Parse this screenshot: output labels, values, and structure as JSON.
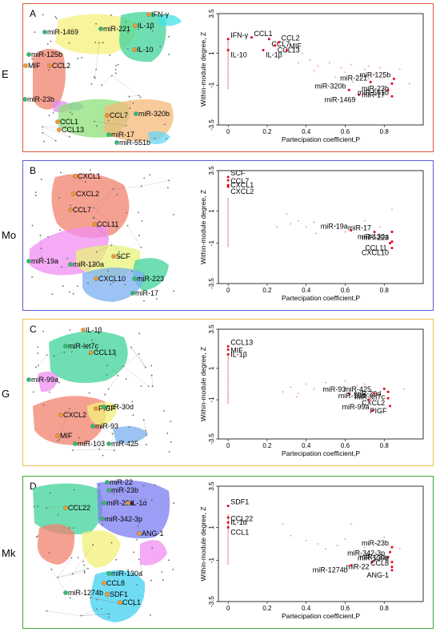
{
  "colors": {
    "panel_A_border": "#e05a3a",
    "panel_B_border": "#5b5bd6",
    "panel_C_border": "#f2c14e",
    "panel_D_border": "#3aa83a",
    "hub_point": "#e0001b",
    "faint_point": "#f3a0ad"
  },
  "panels": [
    {
      "letter": "A",
      "side_label": "E",
      "network_labels": [
        "IFN-γ",
        "miR-221",
        "IL-1β",
        "miR-1469",
        "IL-10",
        "miR-125b",
        "MIF",
        "CCL2",
        "miR-23b",
        "CCL7",
        "CCL1",
        "CCL13",
        "miR-320b",
        "miR-17",
        "miR-551b"
      ],
      "chart_data": {
        "type": "scatter",
        "xlabel": "Partecipation coefficient,P",
        "ylabel": "Within-module degree, Z",
        "xlim": [
          -0.05,
          1.0
        ],
        "ylim": [
          -3.5,
          3.5
        ],
        "xticks": [
          "0",
          "0.2",
          "0.4",
          "0.6",
          "0.8"
        ],
        "yticks": [
          "3.5",
          "1",
          "-1",
          "-3.5"
        ],
        "labeled_points": [
          {
            "label": "IFN-γ",
            "x": 0.0,
            "y": 1.9
          },
          {
            "label": "IL-10",
            "x": 0.0,
            "y": 1.2
          },
          {
            "label": "CCL1",
            "x": 0.12,
            "y": 2.0
          },
          {
            "label": "CCL7",
            "x": 0.21,
            "y": 1.9
          },
          {
            "label": "CCL2",
            "x": 0.26,
            "y": 1.7
          },
          {
            "label": "CCL13",
            "x": 0.24,
            "y": 1.5
          },
          {
            "label": "MIF",
            "x": 0.3,
            "y": 1.2
          },
          {
            "label": "IL-1β",
            "x": 0.18,
            "y": 1.2
          },
          {
            "label": "miR-125b",
            "x": 0.85,
            "y": -0.6
          },
          {
            "label": "miR-23b",
            "x": 0.84,
            "y": -0.9
          },
          {
            "label": "miR-221",
            "x": 0.73,
            "y": -0.8
          },
          {
            "label": "miR-17",
            "x": 0.82,
            "y": -1.3
          },
          {
            "label": "miR-320b",
            "x": 0.62,
            "y": -1.3
          },
          {
            "label": "miR-1469",
            "x": 0.67,
            "y": -1.6
          },
          {
            "label": "miR-551b",
            "x": 0.84,
            "y": -1.7
          }
        ],
        "background_points": [
          [
            0.38,
            1.0
          ],
          [
            0.42,
            0.6
          ],
          [
            0.46,
            0.2
          ],
          [
            0.52,
            0.4
          ],
          [
            0.58,
            0.1
          ],
          [
            0.6,
            -0.2
          ],
          [
            0.63,
            0.3
          ],
          [
            0.66,
            -0.4
          ],
          [
            0.7,
            0.0
          ],
          [
            0.72,
            0.2
          ],
          [
            0.75,
            -0.3
          ],
          [
            0.78,
            0.1
          ],
          [
            0.8,
            -0.5
          ],
          [
            0.88,
            0.0
          ],
          [
            0.93,
            -0.9
          ],
          [
            0.36,
            0.4
          ],
          [
            0.44,
            -0.1
          ],
          [
            0.55,
            -0.5
          ],
          [
            0.64,
            -0.8
          ],
          [
            0.72,
            -0.6
          ]
        ]
      }
    },
    {
      "letter": "B",
      "side_label": "Mo",
      "network_labels": [
        "CXCL1",
        "CXCL2",
        "CCL7",
        "CCL11",
        "miR-19a",
        "miR-130a",
        "SCF",
        "CXCL10",
        "miR-223",
        "miR-17"
      ],
      "chart_data": {
        "type": "scatter",
        "xlabel": "Partecipation coefficient,P",
        "ylabel": "Within-module degree, Z",
        "xlim": [
          -0.05,
          1.0
        ],
        "ylim": [
          -3.5,
          3.5
        ],
        "xticks": [
          "0",
          "0.2",
          "0.4",
          "0.6",
          "0.8"
        ],
        "yticks": [
          "3.5",
          "1",
          "-1",
          "-3.5"
        ],
        "labeled_points": [
          {
            "label": "SCF",
            "x": 0.0,
            "y": 3.1
          },
          {
            "label": "CXCL1",
            "x": 0.0,
            "y": 2.9
          },
          {
            "label": "CCL7",
            "x": 0.0,
            "y": 2.6
          },
          {
            "label": "CXCL2",
            "x": 0.0,
            "y": 2.5
          },
          {
            "label": "miR-17",
            "x": 0.75,
            "y": -0.3
          },
          {
            "label": "miR-130a",
            "x": 0.84,
            "y": -0.3
          },
          {
            "label": "miR-19a",
            "x": 0.63,
            "y": -0.2
          },
          {
            "label": "CCL11",
            "x": 0.83,
            "y": -1.0
          },
          {
            "label": "miR-223",
            "x": 0.84,
            "y": -0.9
          },
          {
            "label": "CXCL10",
            "x": 0.84,
            "y": -1.3
          }
        ],
        "background_points": [
          [
            0.3,
            0.8
          ],
          [
            0.32,
            0.2
          ],
          [
            0.36,
            0.4
          ],
          [
            0.4,
            0.0
          ],
          [
            0.44,
            0.3
          ],
          [
            0.5,
            -0.1
          ],
          [
            0.55,
            0.1
          ],
          [
            0.6,
            -0.3
          ],
          [
            0.7,
            0.4
          ],
          [
            0.78,
            0.0
          ],
          [
            0.84,
            1.1
          ],
          [
            0.25,
            0.0
          ],
          [
            0.45,
            -0.4
          ]
        ]
      }
    },
    {
      "letter": "C",
      "side_label": "G",
      "network_labels": [
        "IL-1β",
        "miR-let7c",
        "CCL13",
        "miR-99a",
        "PIGF",
        "miR-30d",
        "CXCL2",
        "miR-93",
        "MIF",
        "miR-103",
        "miR-425"
      ],
      "chart_data": {
        "type": "scatter",
        "xlabel": "Partecipation coefficient,P",
        "ylabel": "Within-module degree, Z",
        "xlim": [
          -0.05,
          1.0
        ],
        "ylim": [
          -3.5,
          3.5
        ],
        "xticks": [
          "0",
          "0.2",
          "0.4",
          "0.6",
          "0.8"
        ],
        "yticks": [
          "3.5",
          "1",
          "-1",
          "-3.5"
        ],
        "labeled_points": [
          {
            "label": "CCL13",
            "x": 0.0,
            "y": 2.4
          },
          {
            "label": "IL-1β",
            "x": 0.0,
            "y": 2.2
          },
          {
            "label": "MIF",
            "x": 0.0,
            "y": 1.9
          },
          {
            "label": "miR-30d",
            "x": 0.8,
            "y": -0.3
          },
          {
            "label": "miR-93",
            "x": 0.62,
            "y": -0.6
          },
          {
            "label": "miR-let7c",
            "x": 0.82,
            "y": -0.5
          },
          {
            "label": "miR-425",
            "x": 0.75,
            "y": -0.6
          },
          {
            "label": "CXCL2",
            "x": 0.82,
            "y": -0.9
          },
          {
            "label": "miR-103",
            "x": 0.72,
            "y": -1.0
          },
          {
            "label": "PIGF",
            "x": 0.83,
            "y": -1.4
          },
          {
            "label": "miR-99a",
            "x": 0.74,
            "y": -1.7
          }
        ],
        "background_points": [
          [
            0.28,
            -0.5
          ],
          [
            0.32,
            -0.2
          ],
          [
            0.36,
            -0.6
          ],
          [
            0.4,
            0.0
          ],
          [
            0.44,
            -0.3
          ],
          [
            0.5,
            0.1
          ],
          [
            0.56,
            -0.2
          ],
          [
            0.6,
            0.2
          ],
          [
            0.66,
            -0.1
          ],
          [
            0.7,
            0.0
          ],
          [
            0.9,
            -0.3
          ],
          [
            0.35,
            -0.8
          ]
        ]
      }
    },
    {
      "letter": "D",
      "side_label": "Mk",
      "network_labels": [
        "miR-22",
        "miR-23b",
        "CCL22",
        "miR-23a",
        "IL-1α",
        "miR-342-3p",
        "ANG-1",
        "miR-130a",
        "CCL8",
        "miR-1274b",
        "SDF1",
        "CCL1"
      ],
      "chart_data": {
        "type": "scatter",
        "xlabel": "Partecipation coefficient,P",
        "ylabel": "Within-module degree, Z",
        "xlim": [
          -0.05,
          1.0
        ],
        "ylim": [
          -3.5,
          3.5
        ],
        "xticks": [
          "0",
          "0.2",
          "0.4",
          "0.6",
          "0.8"
        ],
        "yticks": [
          "3.5",
          "1",
          "-1",
          "-3.5"
        ],
        "labeled_points": [
          {
            "label": "SDF1",
            "x": 0.0,
            "y": 2.3
          },
          {
            "label": "IL-1α",
            "x": 0.0,
            "y": 1.6
          },
          {
            "label": "CCL22",
            "x": 0.0,
            "y": 1.3
          },
          {
            "label": "CCL1",
            "x": 0.0,
            "y": 1.0
          },
          {
            "label": "miR-23b",
            "x": 0.84,
            "y": -0.2
          },
          {
            "label": "miR-23a",
            "x": 0.83,
            "y": -0.5
          },
          {
            "label": "miR-342-3p",
            "x": 0.82,
            "y": -0.8
          },
          {
            "label": "miR-22",
            "x": 0.74,
            "y": -1.1
          },
          {
            "label": "miR-130a",
            "x": 0.84,
            "y": -1.1
          },
          {
            "label": "miR-1274b",
            "x": 0.63,
            "y": -1.3
          },
          {
            "label": "CCL8",
            "x": 0.84,
            "y": -1.4
          },
          {
            "label": "ANG-1",
            "x": 0.84,
            "y": -1.6
          }
        ],
        "background_points": [
          [
            0.28,
            1.2
          ],
          [
            0.32,
            0.5
          ],
          [
            0.4,
            0.2
          ],
          [
            0.46,
            0.0
          ],
          [
            0.5,
            -0.3
          ],
          [
            0.56,
            -0.1
          ],
          [
            0.6,
            0.3
          ],
          [
            0.66,
            -0.5
          ],
          [
            0.7,
            -0.2
          ],
          [
            0.76,
            0.0
          ],
          [
            0.8,
            0.4
          ],
          [
            0.88,
            -0.3
          ],
          [
            0.63,
            1.2
          ]
        ]
      }
    }
  ]
}
